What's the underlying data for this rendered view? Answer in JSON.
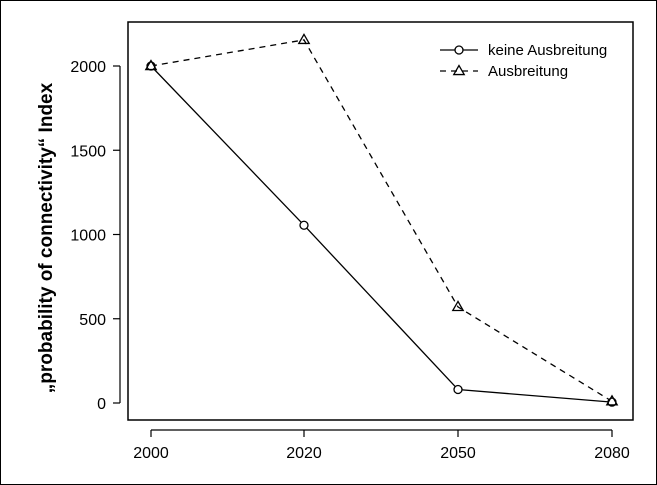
{
  "chart_data": {
    "type": "line",
    "categories": [
      "2000",
      "2020",
      "2050",
      "2080"
    ],
    "series": [
      {
        "name": "keine Ausbreitung",
        "values": [
          2000,
          1055,
          80,
          5
        ],
        "line_style": "solid",
        "marker": "circle"
      },
      {
        "name": "Ausbreitung",
        "values": [
          2000,
          2155,
          570,
          10
        ],
        "line_style": "dashed",
        "marker": "triangle"
      }
    ],
    "title": "",
    "xlabel": "",
    "ylabel": "„probability of connectivity“ Index",
    "ylim": [
      -100,
      2250
    ],
    "yticks": [
      0,
      500,
      1000,
      1500,
      2000
    ],
    "grid": false,
    "legend_position": "top-right",
    "colors": {
      "line": "#000000",
      "background": "#ffffff"
    }
  }
}
